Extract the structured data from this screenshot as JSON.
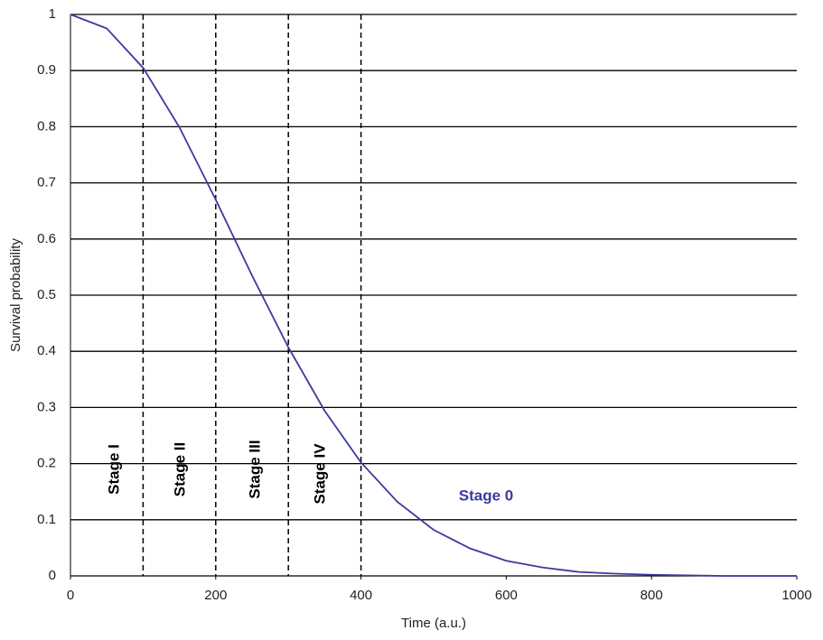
{
  "chart_data": {
    "type": "line",
    "x_label": "Time (a.u.)",
    "y_label": "Survival probability",
    "x": [
      0,
      50,
      100,
      150,
      200,
      250,
      300,
      350,
      400,
      450,
      500,
      550,
      600,
      650,
      700,
      750,
      800,
      850,
      900,
      950,
      1000
    ],
    "series": [
      {
        "name": "Stage 0",
        "color": "#3a3aa0",
        "values": [
          1,
          0.975,
          0.905,
          0.799,
          0.67,
          0.535,
          0.407,
          0.294,
          0.202,
          0.132,
          0.082,
          0.049,
          0.027,
          0.015,
          0.007,
          0.004,
          0.002,
          0.001,
          0,
          0,
          0
        ]
      }
    ],
    "xlim": [
      0,
      1000
    ],
    "xticks": [
      0,
      200,
      400,
      600,
      800,
      1000
    ],
    "ylim": [
      0,
      1
    ],
    "yticks": [
      0,
      0.1,
      0.2,
      0.3,
      0.4,
      0.5,
      0.6,
      0.7,
      0.8,
      0.9,
      1
    ],
    "grid": true,
    "vlines": [
      100,
      200,
      300,
      400
    ],
    "annotations": [
      "Stage I",
      "Stage II",
      "Stage III",
      "Stage IV"
    ]
  }
}
